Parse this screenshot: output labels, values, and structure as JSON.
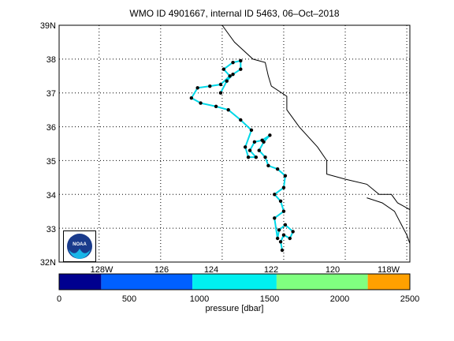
{
  "title": "WMO ID 4901667, internal ID 5463, 06–Oct–2018",
  "latitude_ticks": [
    "39N",
    "38",
    "37",
    "36",
    "35",
    "34",
    "33",
    "32N"
  ],
  "longitude_ticks": [
    "128W",
    "126",
    "124",
    "122",
    "120",
    "118W"
  ],
  "colorbar": {
    "label": "pressure [dbar]",
    "tick_labels": [
      "0",
      "500",
      "1000",
      "1500",
      "2000",
      "2500"
    ],
    "segments": [
      {
        "from": 0,
        "to": 300,
        "color": "#00008f"
      },
      {
        "from": 300,
        "to": 950,
        "color": "#0060ff"
      },
      {
        "from": 950,
        "to": 1550,
        "color": "#00f0f0"
      },
      {
        "from": 1550,
        "to": 2200,
        "color": "#80ff80"
      },
      {
        "from": 2200,
        "to": 2500,
        "color": "#ffa000"
      }
    ]
  },
  "logo_text": "NOAA",
  "map": {
    "lon_range": [
      -129.3,
      -117.9
    ],
    "lat_range": [
      32,
      39
    ],
    "coastline": [
      [
        -124.0,
        39.0
      ],
      [
        -123.6,
        38.5
      ],
      [
        -123.0,
        38.0
      ],
      [
        -122.6,
        37.9
      ],
      [
        -122.5,
        37.5
      ],
      [
        -122.4,
        37.2
      ],
      [
        -121.9,
        36.9
      ],
      [
        -121.9,
        36.5
      ],
      [
        -121.5,
        36.0
      ],
      [
        -120.9,
        35.4
      ],
      [
        -120.6,
        35.0
      ],
      [
        -120.6,
        34.6
      ],
      [
        -120.0,
        34.45
      ],
      [
        -119.3,
        34.3
      ],
      [
        -118.9,
        34.0
      ],
      [
        -118.5,
        34.0
      ],
      [
        -118.3,
        33.75
      ],
      [
        -117.9,
        33.55
      ]
    ],
    "border": [
      [
        -117.9,
        32.55
      ],
      [
        -118.0,
        32.8
      ],
      [
        -118.4,
        33.5
      ],
      [
        -118.8,
        33.75
      ],
      [
        -119.3,
        33.9
      ]
    ],
    "track_points": [
      [
        -122.05,
        32.35
      ],
      [
        -122.1,
        32.6
      ],
      [
        -122.0,
        32.8
      ],
      [
        -121.8,
        32.7
      ],
      [
        -121.7,
        32.9
      ],
      [
        -121.95,
        33.1
      ],
      [
        -122.15,
        32.95
      ],
      [
        -122.2,
        32.7
      ],
      [
        -122.3,
        33.3
      ],
      [
        -122.0,
        33.5
      ],
      [
        -122.1,
        33.8
      ],
      [
        -122.3,
        34.0
      ],
      [
        -122.0,
        34.2
      ],
      [
        -121.95,
        34.55
      ],
      [
        -122.2,
        34.75
      ],
      [
        -122.5,
        34.85
      ],
      [
        -122.6,
        35.1
      ],
      [
        -122.8,
        35.3
      ],
      [
        -122.65,
        35.55
      ],
      [
        -122.45,
        35.75
      ],
      [
        -122.7,
        35.6
      ],
      [
        -122.95,
        35.55
      ],
      [
        -123.1,
        35.3
      ],
      [
        -122.9,
        35.1
      ],
      [
        -123.15,
        35.1
      ],
      [
        -123.25,
        35.4
      ],
      [
        -123.05,
        35.9
      ],
      [
        -123.4,
        36.2
      ],
      [
        -123.8,
        36.5
      ],
      [
        -124.2,
        36.6
      ],
      [
        -124.7,
        36.7
      ],
      [
        -125.0,
        36.85
      ],
      [
        -124.8,
        37.15
      ],
      [
        -124.4,
        37.2
      ],
      [
        -124.05,
        37.25
      ],
      [
        -123.75,
        37.5
      ],
      [
        -123.95,
        37.7
      ],
      [
        -123.65,
        37.9
      ],
      [
        -123.4,
        37.95
      ],
      [
        -123.4,
        37.7
      ],
      [
        -123.65,
        37.55
      ],
      [
        -123.85,
        37.35
      ],
      [
        -124.05,
        37.0
      ]
    ]
  }
}
